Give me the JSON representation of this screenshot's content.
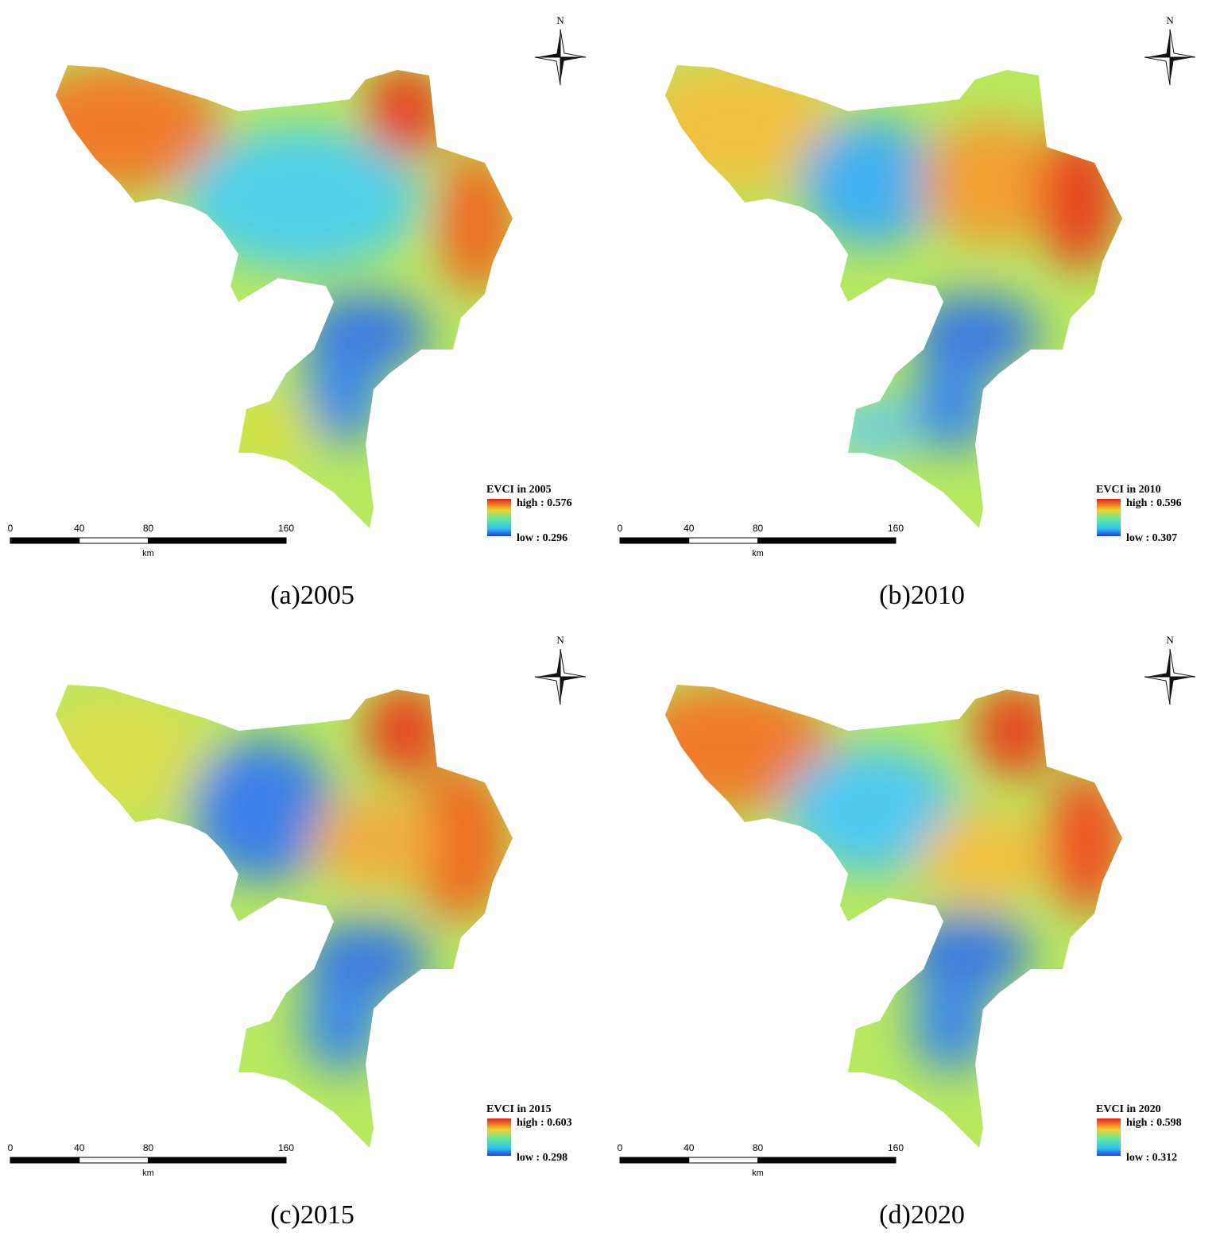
{
  "panels": [
    {
      "north": "N",
      "legend_title": "EVCI in 2005",
      "high_label": "high : 0.576",
      "low_label": "low : 0.296",
      "scale_ticks": [
        0,
        40,
        80,
        160
      ],
      "scale_unit": "km",
      "caption": "(a)2005"
    },
    {
      "north": "N",
      "legend_title": "EVCI in 2010",
      "high_label": "high : 0.596",
      "low_label": "low : 0.307",
      "scale_ticks": [
        0,
        40,
        80,
        160
      ],
      "scale_unit": "km",
      "caption": "(b)2010"
    },
    {
      "north": "N",
      "legend_title": "EVCI in 2015",
      "high_label": "high : 0.603",
      "low_label": "low : 0.298",
      "scale_ticks": [
        0,
        40,
        80,
        160
      ],
      "scale_unit": "km",
      "caption": "(c)2015"
    },
    {
      "north": "N",
      "legend_title": "EVCI in 2020",
      "high_label": "high : 0.598",
      "low_label": "low : 0.312",
      "scale_ticks": [
        0,
        40,
        80,
        160
      ],
      "scale_unit": "km",
      "caption": "(d)2020"
    }
  ]
}
